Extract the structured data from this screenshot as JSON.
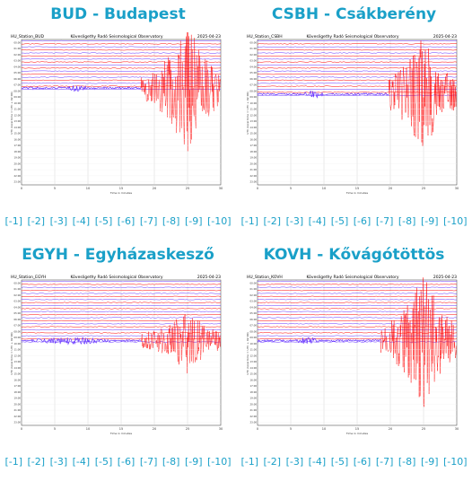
{
  "panels": [
    {
      "title": "BUD - Budapest",
      "station_label": "HU_Station_BUD",
      "observatory": "Kövesligethy Radó Seismological Observatory",
      "date": "2025-04-23",
      "y_axis_label": "UTC (local time = UTC + 02:00)",
      "x_axis_label": "Time in minutes",
      "links": [
        "[-1]",
        "[-2]",
        "[-3]",
        "[-4]",
        "[-5]",
        "[-6]",
        "[-7]",
        "[-8]",
        "[-9]",
        "[-10]"
      ]
    },
    {
      "title": "CSBH - Csákberény",
      "station_label": "HU_Station_CSBH",
      "observatory": "Kövesligethy Radó Seismological Observatory",
      "date": "2025-04-23",
      "y_axis_label": "UTC (local time = UTC + 02:00)",
      "x_axis_label": "Time in minutes",
      "links": [
        "[-1]",
        "[-2]",
        "[-3]",
        "[-4]",
        "[-5]",
        "[-6]",
        "[-7]",
        "[-8]",
        "[-9]",
        "[-10]"
      ]
    },
    {
      "title": "EGYH - Egyházaskesző",
      "station_label": "HU_Station_EGYH",
      "observatory": "Kövesligethy Radó Seismological Observatory",
      "date": "2025-04-23",
      "y_axis_label": "UTC (local time = UTC + 02:00)",
      "x_axis_label": "Time in minutes",
      "links": [
        "[-1]",
        "[-2]",
        "[-3]",
        "[-4]",
        "[-5]",
        "[-6]",
        "[-7]",
        "[-8]",
        "[-9]",
        "[-10]"
      ]
    },
    {
      "title": "KOVH - Kővágótöttös",
      "station_label": "HU_Station_KOVH",
      "observatory": "Kövesligethy Radó Seismological Observatory",
      "date": "2025-04-23",
      "y_axis_label": "UTC (local time = UTC + 02:00)",
      "x_axis_label": "Time in minutes",
      "links": [
        "[-1]",
        "[-2]",
        "[-3]",
        "[-4]",
        "[-5]",
        "[-6]",
        "[-7]",
        "[-8]",
        "[-9]",
        "[-10]"
      ]
    }
  ],
  "x_ticks": [
    "0",
    "5",
    "10",
    "15",
    "20",
    "25",
    "30"
  ],
  "y_ticks": [
    "00:00",
    "01:00",
    "02:00",
    "03:00",
    "04:00",
    "05:00",
    "06:00",
    "07:00",
    "08:00",
    "09:00",
    "10:00",
    "11:00",
    "12:00",
    "13:00",
    "14:00",
    "15:00",
    "16:00",
    "17:00",
    "18:00",
    "19:00",
    "20:00",
    "21:00",
    "22:00",
    "23:00"
  ],
  "colors": {
    "title": "#1aa0c8",
    "trace_purple": "#6633ff",
    "trace_red": "#ff0000",
    "grid": "#cccccc"
  }
}
